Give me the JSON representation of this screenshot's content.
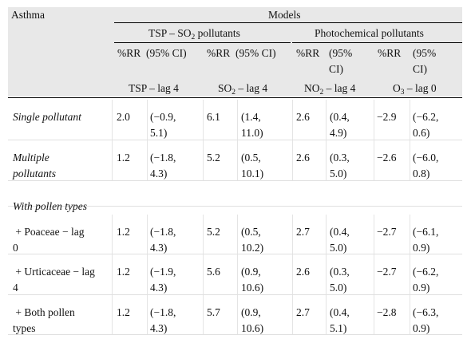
{
  "header": {
    "corner": "Asthma",
    "models": "Models",
    "group1": {
      "pre": "TSP – SO",
      "sub": "2",
      "post": " pollutants"
    },
    "group2": "Photochemical pollutants",
    "rr": "%RR",
    "ci": "(95% CI)",
    "ci_a": "(95%",
    "ci_b": "CI)",
    "lag_tsp": "TSP – lag 4",
    "lag_so2": {
      "pre": "SO",
      "sub": "2",
      "post": " – lag 4"
    },
    "lag_no2": {
      "pre": "NO",
      "sub": "2",
      "post": " – lag 4"
    },
    "lag_o3": {
      "pre": "O",
      "sub": "3",
      "post": " – lag 0"
    }
  },
  "rows": [
    {
      "label": [
        "Single pollutant"
      ],
      "italic": true,
      "tsp": [
        "2.0",
        "(−0.9,",
        "5.1)"
      ],
      "so2": [
        "6.1",
        "(1.4,",
        "11.0)"
      ],
      "no2": [
        "2.6",
        "(0.4,",
        "4.9)"
      ],
      "o3": [
        "−2.9",
        "(−6.2,",
        "0.6)"
      ]
    },
    {
      "label": [
        "Multiple",
        "pollutants"
      ],
      "italic": true,
      "tsp": [
        "1.2",
        "(−1.8,",
        "4.3)"
      ],
      "so2": [
        "5.2",
        "(0.5,",
        "10.1)"
      ],
      "no2": [
        "2.6",
        "(0.3,",
        "5.0)"
      ],
      "o3": [
        "−2.6",
        "(−6.0,",
        "0.8)"
      ]
    },
    {
      "label": [
        "With pollen types"
      ],
      "italic": true,
      "section": true
    },
    {
      "label": [
        " + Poaceae − lag",
        "0"
      ],
      "italic": false,
      "tsp": [
        "1.2",
        "(−1.8,",
        "4.3)"
      ],
      "so2": [
        "5.2",
        "(0.5,",
        "10.2)"
      ],
      "no2": [
        "2.7",
        "(0.4,",
        "5.0)"
      ],
      "o3": [
        "−2.7",
        "(−6.1,",
        "0.9)"
      ]
    },
    {
      "label": [
        " + Urticaceae − lag",
        "4"
      ],
      "italic": false,
      "tsp": [
        "1.2",
        "(−1.9,",
        "4.3)"
      ],
      "so2": [
        "5.6",
        "(0.9,",
        "10.6)"
      ],
      "no2": [
        "2.6",
        "(0.3,",
        "5.0)"
      ],
      "o3": [
        "−2.7",
        "(−6.2,",
        "0.9)"
      ]
    },
    {
      "label": [
        " + Both pollen",
        "types"
      ],
      "italic": false,
      "tsp": [
        "1.2",
        "(−1.8,",
        "4.3)"
      ],
      "so2": [
        "5.7",
        "(0.9,",
        "10.6)"
      ],
      "no2": [
        "2.7",
        "(0.4,",
        "5.1)"
      ],
      "o3": [
        "−2.8",
        "(−6.3,",
        "0.9)"
      ]
    }
  ]
}
